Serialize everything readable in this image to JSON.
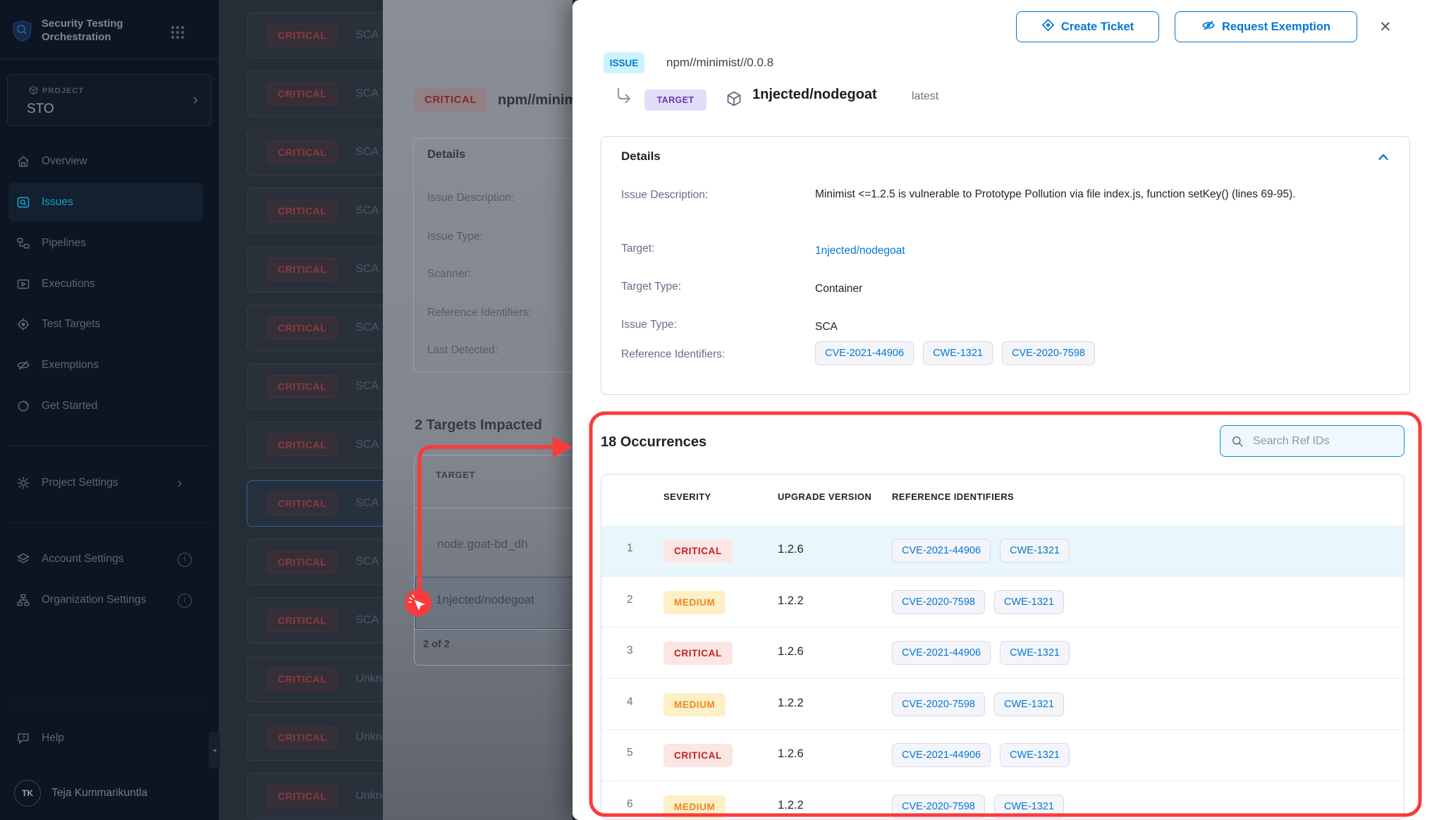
{
  "colors": {
    "accent": "#0278d5",
    "link": "#0278d5",
    "annotation_red": "#fa3b3b",
    "critical_text": "#c3201f",
    "critical_bg": "#fbe6e4",
    "medium_text": "#ee8625",
    "medium_bg": "#fdf0c6",
    "chip_text": "#0278d5",
    "chip_bg": "#f4f5fa",
    "chip_border": "#d8d9e5",
    "row_highlight": "#e9f7fd",
    "issue_badge_bg": "#cdf4fe",
    "target_badge_bg": "#e1def9",
    "target_badge_text": "#6739b7",
    "search_bg": "#eff8fe",
    "search_border": "#0092e4",
    "sidebar_active": "#14a0cb"
  },
  "icons": {
    "close": "✕",
    "chevron_right": "›",
    "collapse": "◂"
  },
  "sidebar": {
    "title": "Security Testing Orchestration",
    "project_label": "PROJECT",
    "project_name": "STO",
    "nav": [
      {
        "label": "Overview",
        "icon": "home-icon"
      },
      {
        "label": "Issues",
        "icon": "issues-icon",
        "active": true
      },
      {
        "label": "Pipelines",
        "icon": "pipelines-icon"
      },
      {
        "label": "Executions",
        "icon": "executions-icon"
      },
      {
        "label": "Test Targets",
        "icon": "test-targets-icon"
      },
      {
        "label": "Exemptions",
        "icon": "eye-off-icon"
      },
      {
        "label": "Get Started",
        "icon": "get-started-icon"
      }
    ],
    "project_settings": "Project Settings",
    "account_settings": "Account Settings",
    "organization_settings": "Organization Settings",
    "help": "Help",
    "user_initials": "TK",
    "user_name": "Teja Kummarikuntla"
  },
  "issues_list": {
    "selected_index": 8,
    "rows": [
      {
        "severity": "CRITICAL",
        "type": "SCA"
      },
      {
        "severity": "CRITICAL",
        "type": "SCA"
      },
      {
        "severity": "CRITICAL",
        "type": "SCA"
      },
      {
        "severity": "CRITICAL",
        "type": "SCA"
      },
      {
        "severity": "CRITICAL",
        "type": "SCA"
      },
      {
        "severity": "CRITICAL",
        "type": "SCA"
      },
      {
        "severity": "CRITICAL",
        "type": "SCA"
      },
      {
        "severity": "CRITICAL",
        "type": "SCA"
      },
      {
        "severity": "CRITICAL",
        "type": "SCA"
      },
      {
        "severity": "CRITICAL",
        "type": "SCA"
      },
      {
        "severity": "CRITICAL",
        "type": "SCA"
      },
      {
        "severity": "CRITICAL",
        "type": "Unknown"
      },
      {
        "severity": "CRITICAL",
        "type": "Unknown"
      },
      {
        "severity": "CRITICAL",
        "type": "Unknown"
      }
    ]
  },
  "drawer": {
    "severity": "CRITICAL",
    "details_title": "Details",
    "fields": [
      "Issue Description:",
      "Issue Type:",
      "Scanner:",
      "Reference Identifiers:",
      "Last Detected:"
    ],
    "targets_heading": "2 Targets Impacted",
    "target_column": "TARGET",
    "targets": [
      "node.goat-bd_dh",
      "1njected/nodegoat"
    ],
    "selected_target_index": 1,
    "pagination": "2 of 2"
  },
  "modal": {
    "create_ticket_label": "Create Ticket",
    "request_exemption_label": "Request Exemption",
    "issue_badge": "ISSUE",
    "issue_name": "npm//minimist//0.0.8",
    "target_badge": "TARGET",
    "target_name": "1njected/nodegoat",
    "target_tag": "latest",
    "details": {
      "title": "Details",
      "rows": [
        {
          "label": "Issue Description:",
          "value": "Minimist <=1.2.5 is vulnerable to Prototype Pollution via file index.js, function setKey() (lines 69-95)."
        },
        {
          "label": "Target:",
          "value": "1njected/nodegoat",
          "kind": "link"
        },
        {
          "label": "Target Type:",
          "value": "Container"
        },
        {
          "label": "Issue Type:",
          "value": "SCA"
        },
        {
          "label": "Reference Identifiers:",
          "refs": [
            "CVE-2021-44906",
            "CWE-1321",
            "CVE-2020-7598"
          ]
        }
      ]
    },
    "occurrences": {
      "heading": "18 Occurrences",
      "search_placeholder": "Search Ref IDs",
      "columns": [
        "SEVERITY",
        "UPGRADE VERSION",
        "REFERENCE IDENTIFIERS"
      ],
      "rows": [
        {
          "index": "1",
          "severity": "CRITICAL",
          "version": "1.2.6",
          "refs": [
            "CVE-2021-44906",
            "CWE-1321"
          ]
        },
        {
          "index": "2",
          "severity": "MEDIUM",
          "version": "1.2.2",
          "refs": [
            "CVE-2020-7598",
            "CWE-1321"
          ]
        },
        {
          "index": "3",
          "severity": "CRITICAL",
          "version": "1.2.6",
          "refs": [
            "CVE-2021-44906",
            "CWE-1321"
          ]
        },
        {
          "index": "4",
          "severity": "MEDIUM",
          "version": "1.2.2",
          "refs": [
            "CVE-2020-7598",
            "CWE-1321"
          ]
        },
        {
          "index": "5",
          "severity": "CRITICAL",
          "version": "1.2.6",
          "refs": [
            "CVE-2021-44906",
            "CWE-1321"
          ]
        },
        {
          "index": "6",
          "severity": "MEDIUM",
          "version": "1.2.2",
          "refs": [
            "CVE-2020-7598",
            "CWE-1321"
          ]
        }
      ]
    }
  }
}
